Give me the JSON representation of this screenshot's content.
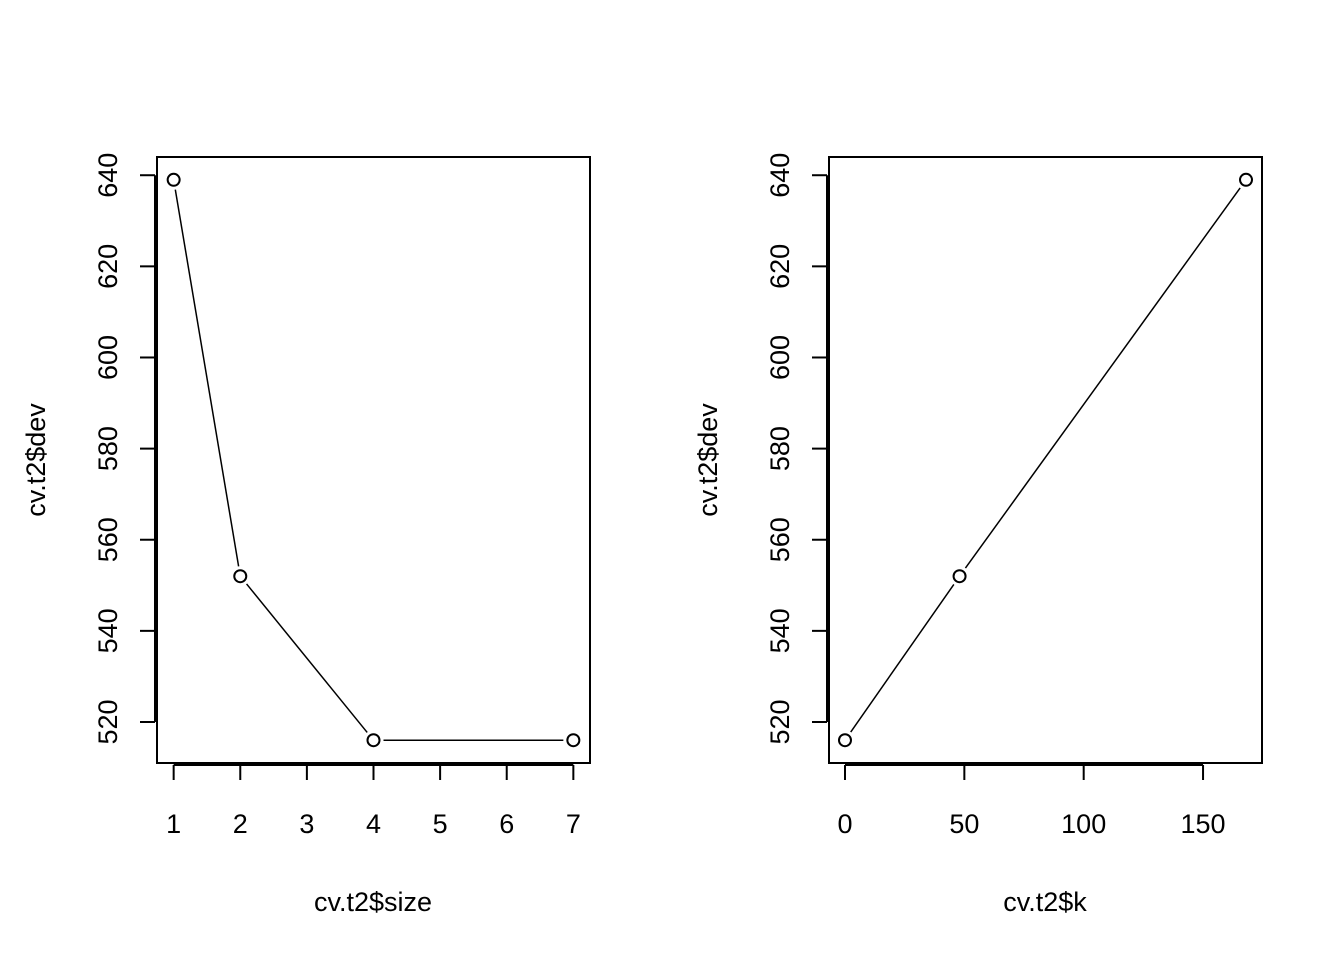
{
  "chart_data": [
    {
      "type": "line",
      "markers": "open-circle",
      "title": "",
      "xlabel": "cv.t2$size",
      "ylabel": "cv.t2$dev",
      "xlim": [
        0.75,
        7.25
      ],
      "ylim": [
        511,
        644
      ],
      "xticks": [
        1,
        2,
        3,
        4,
        5,
        6,
        7
      ],
      "yticks": [
        520,
        540,
        560,
        580,
        600,
        620,
        640
      ],
      "grid": false,
      "x": [
        1,
        2,
        4,
        7
      ],
      "y": [
        639,
        552,
        516,
        516
      ]
    },
    {
      "type": "line",
      "markers": "open-circle",
      "title": "",
      "xlabel": "cv.t2$k",
      "ylabel": "cv.t2$dev",
      "xlim": [
        -6.7,
        174.7
      ],
      "ylim": [
        511,
        644
      ],
      "xticks": [
        0,
        50,
        100,
        150
      ],
      "yticks": [
        520,
        540,
        560,
        580,
        600,
        620,
        640
      ],
      "grid": false,
      "x": [
        0,
        48,
        168
      ],
      "y": [
        516,
        552,
        639
      ]
    }
  ]
}
